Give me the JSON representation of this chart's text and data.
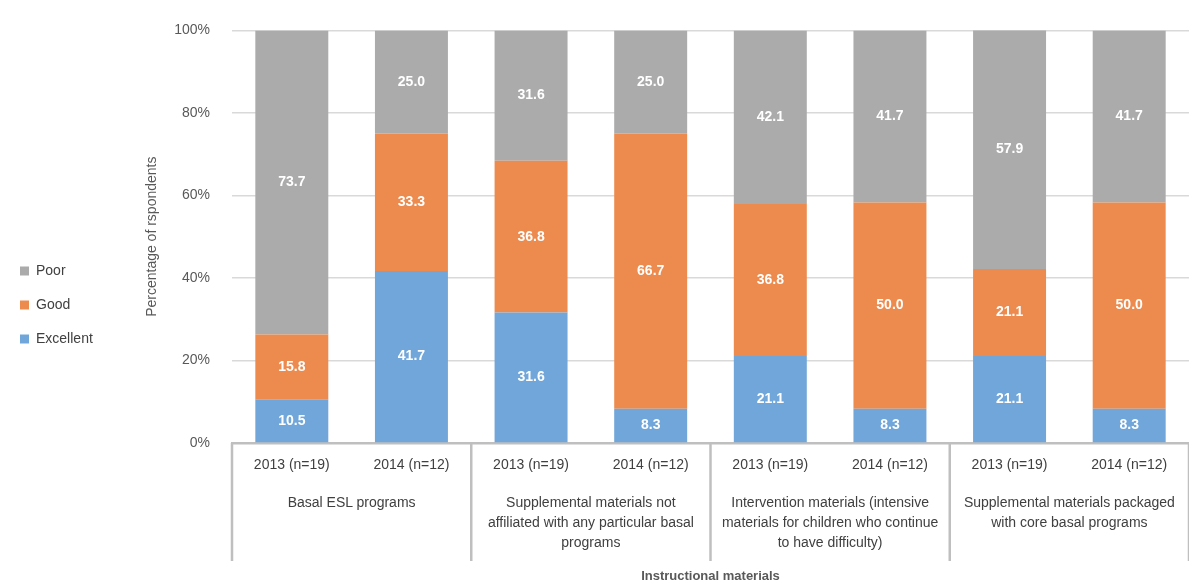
{
  "chart_data": {
    "type": "bar",
    "stacked": true,
    "ylabel": "Percentage of rspondents",
    "categories": [
      "2013 (n=19)",
      "2014 (n=12)",
      "2013 (n=19)",
      "2014 (n=12)",
      "2013 (n=19)",
      "2014 (n=12)",
      "2013 (n=19)",
      "2014 (n=12)"
    ],
    "annotations": [
      "Basal ESL programs",
      "Supplemental materials not affiliated with any particular basal programs",
      "Intervention materials (intensive materials for children who continue to have difficulty)",
      "Supplemental materials packaged with core basal programs",
      "Instructional materials"
    ],
    "series": [
      {
        "name": "Excellent",
        "color": "#70a6d9",
        "values": [
          10.5,
          41.7,
          31.6,
          8.3,
          21.1,
          8.3,
          21.1,
          8.3
        ],
        "value_labels": [
          "10.5",
          "41.7",
          "31.6",
          "8.3",
          "21.1",
          "8.3",
          "21.1",
          "8.3"
        ]
      },
      {
        "name": "Good",
        "color": "#ed8b4e",
        "values": [
          15.8,
          33.3,
          36.8,
          66.7,
          36.8,
          50.0,
          21.1,
          50.0
        ],
        "value_labels": [
          "15.8",
          "33.3",
          "36.8",
          "66.7",
          "36.8",
          "50.0",
          "21.1",
          "50.0"
        ]
      },
      {
        "name": "Poor",
        "color": "#ababab",
        "values": [
          73.7,
          25.0,
          31.6,
          25.0,
          42.1,
          41.7,
          57.9,
          41.7
        ],
        "value_labels": [
          "73.7",
          "25.0",
          "31.6",
          "25.0",
          "42.1",
          "41.7",
          "57.9",
          "41.7"
        ]
      }
    ],
    "ylim": [
      0,
      100
    ],
    "yticks": [
      {
        "value": 0,
        "label": "0%"
      },
      {
        "value": 20,
        "label": "20%"
      },
      {
        "value": 40,
        "label": "40%"
      },
      {
        "value": 60,
        "label": "60%"
      },
      {
        "value": 80,
        "label": "80%"
      },
      {
        "value": 100,
        "label": "100%"
      }
    ],
    "grid": "y",
    "legend": "left"
  }
}
